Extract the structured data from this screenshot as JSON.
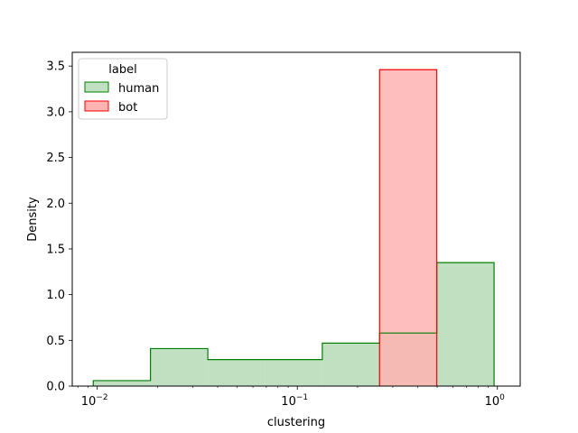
{
  "chart_data": {
    "type": "histogram",
    "xscale": "log",
    "xlabel": "clustering",
    "ylabel": "Density",
    "xlim": [
      0.0075,
      1.3
    ],
    "ylim": [
      0,
      3.65
    ],
    "x_ticks": [
      {
        "value": 0.01,
        "base": "10",
        "exp": "−2"
      },
      {
        "value": 0.1,
        "base": "10",
        "exp": "−1"
      },
      {
        "value": 1,
        "base": "10",
        "exp": "0"
      }
    ],
    "y_ticks": [
      "0.0",
      "0.5",
      "1.0",
      "1.5",
      "2.0",
      "2.5",
      "3.0",
      "3.5"
    ],
    "grid": false,
    "legend": {
      "title": "label",
      "position": "top-left"
    },
    "series": [
      {
        "name": "human",
        "fill": "#c1e0c1",
        "edge": "#008000",
        "bins": [
          0.00955,
          0.01845,
          0.0357,
          0.06895,
          0.1333,
          0.2576,
          0.4979,
          0.9624
        ],
        "values": [
          0.06,
          0.41,
          0.29,
          0.29,
          0.47,
          0.58,
          1.35
        ]
      },
      {
        "name": "bot",
        "fill": "#ffb3b3",
        "edge": "#ff0000",
        "bins": [
          0.2576,
          0.4979
        ],
        "values": [
          3.46
        ]
      }
    ]
  }
}
